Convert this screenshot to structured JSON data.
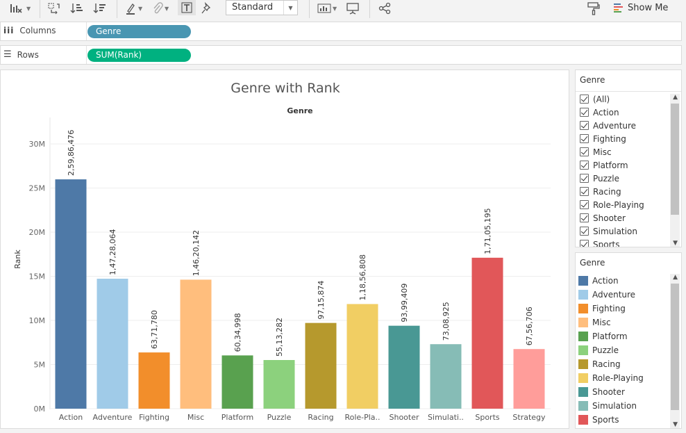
{
  "toolbar": {
    "view_mode": "Standard",
    "show_me": "Show Me",
    "icons": [
      "chart-options-icon",
      "swap-icon",
      "sort-ascending-icon",
      "sort-descending-icon",
      "highlight-icon",
      "paperclip-icon",
      "text-label-icon",
      "pin-icon",
      "view-mode-icon",
      "presentation-icon",
      "share-icon",
      "paint-roller-icon",
      "show-me-icon"
    ]
  },
  "shelves": {
    "columns": {
      "label": "Columns",
      "pill": "Genre",
      "color": "#4996b2"
    },
    "rows": {
      "label": "Rows",
      "pill": "SUM(Rank)",
      "color": "#00b180"
    }
  },
  "chart_data": {
    "type": "bar",
    "title": "Genre with Rank",
    "header": "Genre",
    "ylabel": "Rank",
    "ylim": [
      0,
      33000000
    ],
    "yticks": [
      "0M",
      "5M",
      "10M",
      "15M",
      "20M",
      "25M",
      "30M"
    ],
    "ytick_values": [
      0,
      5000000,
      10000000,
      15000000,
      20000000,
      25000000,
      30000000
    ],
    "categories": [
      "Action",
      "Adventure",
      "Fighting",
      "Misc",
      "Platform",
      "Puzzle",
      "Racing",
      "Role-Pla..",
      "Shooter",
      "Simulati..",
      "Sports",
      "Strategy"
    ],
    "values": [
      25986476,
      14728064,
      6371780,
      14620142,
      6034998,
      5513282,
      9715874,
      11856808,
      9399409,
      7308925,
      17105195,
      6756706
    ],
    "labels": [
      "2,59,86,476",
      "1,47,28,064",
      "63,71,780",
      "1,46,20,142",
      "60,34,998",
      "55,13,282",
      "97,15,874",
      "1,18,56,808",
      "93,99,409",
      "73,08,925",
      "1,71,05,195",
      "67,56,706"
    ],
    "colors": [
      "#4e79a7",
      "#a0cbe8",
      "#f28e2b",
      "#ffbe7d",
      "#59a14f",
      "#8cd17d",
      "#b6992d",
      "#f1ce63",
      "#499894",
      "#86bcb6",
      "#e15759",
      "#ff9d9a"
    ],
    "grid": true
  },
  "filter_card": {
    "title": "Genre",
    "items": [
      "(All)",
      "Action",
      "Adventure",
      "Fighting",
      "Misc",
      "Platform",
      "Puzzle",
      "Racing",
      "Role-Playing",
      "Shooter",
      "Simulation",
      "Sports"
    ]
  },
  "legend_card": {
    "title": "Genre",
    "items": [
      {
        "name": "Action",
        "color": "#4e79a7"
      },
      {
        "name": "Adventure",
        "color": "#a0cbe8"
      },
      {
        "name": "Fighting",
        "color": "#f28e2b"
      },
      {
        "name": "Misc",
        "color": "#ffbe7d"
      },
      {
        "name": "Platform",
        "color": "#59a14f"
      },
      {
        "name": "Puzzle",
        "color": "#8cd17d"
      },
      {
        "name": "Racing",
        "color": "#b6992d"
      },
      {
        "name": "Role-Playing",
        "color": "#f1ce63"
      },
      {
        "name": "Shooter",
        "color": "#499894"
      },
      {
        "name": "Simulation",
        "color": "#86bcb6"
      },
      {
        "name": "Sports",
        "color": "#e15759"
      }
    ]
  }
}
